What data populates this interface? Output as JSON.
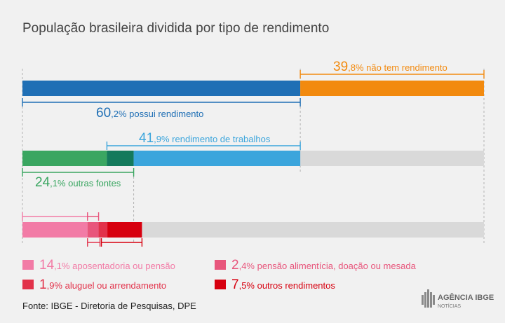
{
  "title": "População brasileira dividida por tipo de rendimento",
  "source": "Fonte: IBGE - Diretoria de Pesquisas, DPE",
  "logo": {
    "name": "AGÊNCIA IBGE",
    "sub": "NOTÍCIAS"
  },
  "colors": {
    "background": "#f1f1f1",
    "track": "#d9d9d9",
    "possui": "#1f6fb5",
    "nao_tem": "#f28a0f",
    "trabalhos": "#3ba5dc",
    "outras_fontes": "#3aa661",
    "outras_fontes_dark": "#147a5c",
    "aposentadoria": "#f27ba6",
    "pensao_alimenticia": "#e8567c",
    "aluguel": "#e2324a",
    "outros_rendimentos": "#d7000f",
    "text_gray": "#666666"
  },
  "chart_data": {
    "type": "bar",
    "stacked": true,
    "orientation": "horizontal",
    "title": "População brasileira dividida por tipo de rendimento",
    "xlim": [
      0,
      100
    ],
    "unit": "%",
    "rows": [
      {
        "segments": [
          {
            "name": "possui rendimento",
            "value": 60.2,
            "color": "#1f6fb5"
          },
          {
            "name": "não tem rendimento",
            "value": 39.8,
            "color": "#f28a0f"
          }
        ]
      },
      {
        "segments": [
          {
            "name": "outras fontes",
            "value": 18.3,
            "color": "#3aa661"
          },
          {
            "name": "outras fontes",
            "value": 5.8,
            "color": "#147a5c"
          },
          {
            "name": "rendimento de trabalhos",
            "value": 41.9,
            "color": "#3ba5dc"
          }
        ]
      },
      {
        "segments": [
          {
            "name": "aposentadoria ou pensão",
            "value": 14.1,
            "color": "#f27ba6"
          },
          {
            "name": "pensão alimentícia, doação ou mesada",
            "value": 2.4,
            "color": "#e8567c"
          },
          {
            "name": "aluguel ou arrendamento",
            "value": 1.9,
            "color": "#e2324a"
          },
          {
            "name": "outros rendimentos",
            "value": 7.5,
            "color": "#d7000f"
          }
        ]
      }
    ],
    "annotations": [
      {
        "int": "39",
        "dec": ",8%",
        "text": "não tem rendimento",
        "color": "#f28a0f"
      },
      {
        "int": "60",
        "dec": ",2%",
        "text": "possui rendimento",
        "color": "#1f6fb5"
      },
      {
        "int": "41",
        "dec": ",9%",
        "text": "rendimento de trabalhos",
        "color": "#3ba5dc"
      },
      {
        "int": "24",
        "dec": ",1%",
        "text": "outras fontes",
        "color": "#3aa661"
      }
    ],
    "legend": [
      {
        "int": "14",
        "dec": ",1%",
        "text": "aposentadoria ou pensão",
        "color": "#f27ba6"
      },
      {
        "int": "2",
        "dec": ",4%",
        "text": "pensão alimentícia, doação ou mesada",
        "color": "#e8567c"
      },
      {
        "int": "1",
        "dec": ",9%",
        "text": "aluguel ou arrendamento",
        "color": "#e2324a"
      },
      {
        "int": "7",
        "dec": ",5%",
        "text": "outros rendimentos",
        "color": "#d7000f"
      }
    ]
  }
}
